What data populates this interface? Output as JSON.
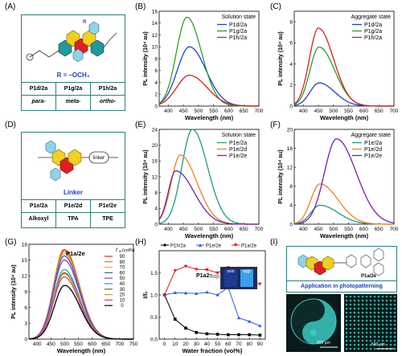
{
  "panels": {
    "A": {
      "letter": "(A)",
      "r_label": "R = –OCH₃",
      "cols": [
        {
          "name": "P1d/2a",
          "pos": "para-"
        },
        {
          "name": "P1g/2a",
          "pos": "meta-"
        },
        {
          "name": "P1h/2a",
          "pos": "ortho-"
        }
      ],
      "r_mark": "R"
    },
    "B": {
      "letter": "(B)"
    },
    "C": {
      "letter": "(C)"
    },
    "D": {
      "letter": "(D)",
      "linker_tag": "linker",
      "hdr": "Linker",
      "cols": [
        {
          "name": "P1e/2a",
          "kind": "Alkoxyl"
        },
        {
          "name": "P1e/2d",
          "kind": "TPA"
        },
        {
          "name": "P1e/2e",
          "kind": "TPE"
        }
      ]
    },
    "E": {
      "letter": "(E)"
    },
    "F": {
      "letter": "(F)"
    },
    "G": {
      "letter": "(G)"
    },
    "H": {
      "letter": "(H)",
      "inset_label": "P1a2e",
      "inset_soln": "soln",
      "inset_aggr": "aggr"
    },
    "I": {
      "letter": "(I)",
      "struct_label": "P1a/2e",
      "caption": "Application in photopatterning",
      "scale1": "200 μm",
      "scale2": "500 μm"
    }
  },
  "colors": {
    "blue": "#1f3fd0",
    "green": "#2aa02a",
    "red": "#d42020",
    "teal": "#1a9a8a",
    "orange": "#f08020",
    "purple": "#7a1fa0",
    "struct_teal": "#2d7d7d"
  },
  "chart_data": [
    {
      "id": "B",
      "type": "line",
      "title": "",
      "annotation": "Solution state",
      "xlabel": "Wavelength (nm)",
      "ylabel": "PL intensity (10⁴ au)",
      "xlim": [
        370,
        700
      ],
      "ylim": [
        0,
        16
      ],
      "xticks": [
        400,
        450,
        500,
        550,
        600,
        650,
        700
      ],
      "yticks": [
        0,
        2,
        4,
        6,
        8,
        10,
        12,
        14,
        16
      ],
      "series": [
        {
          "name": "P1d/2a",
          "color": "#1f3fd0",
          "peak_x": 470,
          "peak_y": 10.0,
          "sigma_l": 40,
          "sigma_r": 55
        },
        {
          "name": "P1g/2a",
          "color": "#2aa02a",
          "peak_x": 462,
          "peak_y": 15.0,
          "sigma_l": 35,
          "sigma_r": 48
        },
        {
          "name": "P1h/2a",
          "color": "#d42020",
          "peak_x": 470,
          "peak_y": 5.2,
          "sigma_l": 42,
          "sigma_r": 58
        }
      ]
    },
    {
      "id": "C",
      "type": "line",
      "title": "",
      "annotation": "Aggregate state",
      "xlabel": "Wavelength (nm)",
      "ylabel": "PL intensity (10⁴ au)",
      "xlim": [
        370,
        700
      ],
      "ylim": [
        0,
        9
      ],
      "xticks": [
        400,
        450,
        500,
        550,
        600,
        650,
        700
      ],
      "yticks": [
        0,
        2,
        4,
        6,
        8
      ],
      "series": [
        {
          "name": "P1d/2a",
          "color": "#1f3fd0",
          "peak_x": 452,
          "peak_y": 2.2,
          "sigma_l": 30,
          "sigma_r": 52
        },
        {
          "name": "P1g/2a",
          "color": "#2aa02a",
          "peak_x": 452,
          "peak_y": 5.6,
          "sigma_l": 30,
          "sigma_r": 52
        },
        {
          "name": "P1h/2a",
          "color": "#d42020",
          "peak_x": 450,
          "peak_y": 7.4,
          "sigma_l": 30,
          "sigma_r": 50
        }
      ]
    },
    {
      "id": "E",
      "type": "line",
      "title": "",
      "annotation": "Solution state",
      "xlabel": "Wavelength (nm)",
      "ylabel": "PL intensity (10⁴ au)",
      "xlim": [
        370,
        700
      ],
      "ylim": [
        0,
        24
      ],
      "xticks": [
        400,
        450,
        500,
        550,
        600,
        650,
        700
      ],
      "yticks": [
        0,
        4,
        8,
        12,
        16,
        20,
        24
      ],
      "series": [
        {
          "name": "P1e/2a",
          "color": "#1a9a8a",
          "peak_x": 480,
          "peak_y": 24.0,
          "sigma_l": 35,
          "sigma_r": 50
        },
        {
          "name": "P1e/2d",
          "color": "#f08020",
          "peak_x": 440,
          "peak_y": 17.5,
          "sigma_l": 30,
          "sigma_r": 55
        },
        {
          "name": "P1e/2e",
          "color": "#7a1fa0",
          "peak_x": 425,
          "peak_y": 13.5,
          "sigma_l": 25,
          "sigma_r": 60
        }
      ]
    },
    {
      "id": "F",
      "type": "line",
      "title": "",
      "annotation": "Aggregate state",
      "xlabel": "Wavelength (nm)",
      "ylabel": "PL intensity (10⁴ au)",
      "xlim": [
        370,
        700
      ],
      "ylim": [
        0,
        20
      ],
      "xticks": [
        400,
        450,
        500,
        550,
        600,
        650,
        700
      ],
      "yticks": [
        0,
        4,
        8,
        12,
        16,
        20
      ],
      "series": [
        {
          "name": "P1e/2a",
          "color": "#1a9a8a",
          "peak_x": 455,
          "peak_y": 4.0,
          "sigma_l": 30,
          "sigma_r": 60
        },
        {
          "name": "P1e/2d",
          "color": "#f08020",
          "peak_x": 455,
          "peak_y": 8.5,
          "sigma_l": 30,
          "sigma_r": 60
        },
        {
          "name": "P1e/2e",
          "color": "#7a1fa0",
          "peak_x": 510,
          "peak_y": 18.0,
          "sigma_l": 40,
          "sigma_r": 65
        }
      ]
    },
    {
      "id": "G",
      "type": "line",
      "title": "P1a/2e",
      "legend_title": "f_w (vol%)",
      "xlabel": "Wavelength (nm)",
      "ylabel": "PL intensity (10⁴ au)",
      "xlim": [
        370,
        750
      ],
      "ylim": [
        0,
        18
      ],
      "xticks": [
        400,
        450,
        500,
        550,
        600,
        650,
        700,
        750
      ],
      "yticks": [
        0,
        3,
        6,
        9,
        12,
        15,
        18
      ],
      "series": [
        {
          "name": "90",
          "color": "#e02020",
          "peak_x": 498,
          "peak_y": 17.0
        },
        {
          "name": "80",
          "color": "#f07020",
          "peak_x": 498,
          "peak_y": 16.7
        },
        {
          "name": "70",
          "color": "#e8b010",
          "peak_x": 498,
          "peak_y": 16.3
        },
        {
          "name": "60",
          "color": "#3060d0",
          "peak_x": 498,
          "peak_y": 15.8
        },
        {
          "name": "50",
          "color": "#9040c0",
          "peak_x": 498,
          "peak_y": 15.0
        },
        {
          "name": "40",
          "color": "#20a0d0",
          "peak_x": 498,
          "peak_y": 13.2
        },
        {
          "name": "30",
          "color": "#8a5a20",
          "peak_x": 498,
          "peak_y": 12.6
        },
        {
          "name": "20",
          "color": "#c0a020",
          "peak_x": 498,
          "peak_y": 12.4
        },
        {
          "name": "10",
          "color": "#d04080",
          "peak_x": 498,
          "peak_y": 11.8
        },
        {
          "name": "0",
          "color": "#000000",
          "peak_x": 500,
          "peak_y": 10.2
        }
      ]
    },
    {
      "id": "H",
      "type": "line",
      "xlabel": "Water fraction (vol%)",
      "ylabel": "I/I₀",
      "xlim": [
        -5,
        95
      ],
      "ylim": [
        0,
        2.0
      ],
      "xticks": [
        0,
        10,
        20,
        30,
        40,
        50,
        60,
        70,
        80,
        90
      ],
      "yticks": [
        0.0,
        0.5,
        1.0,
        1.5
      ],
      "x": [
        0,
        10,
        20,
        30,
        40,
        50,
        60,
        70,
        80,
        90
      ],
      "series": [
        {
          "name": "P1h/2a",
          "color": "#000000",
          "marker": "square",
          "values": [
            1.0,
            0.45,
            0.25,
            0.15,
            0.12,
            0.11,
            0.1,
            0.1,
            0.1,
            0.09
          ]
        },
        {
          "name": "P1e/2e",
          "color": "#3060d0",
          "marker": "triangle",
          "values": [
            1.0,
            1.05,
            1.04,
            1.03,
            1.06,
            1.0,
            1.17,
            0.48,
            0.4,
            0.3
          ]
        },
        {
          "name": "P1a/2e",
          "color": "#d42020",
          "marker": "triangle-down",
          "values": [
            1.0,
            1.55,
            1.65,
            1.58,
            1.57,
            1.5,
            1.62,
            1.3,
            1.25,
            1.25
          ]
        }
      ]
    }
  ]
}
